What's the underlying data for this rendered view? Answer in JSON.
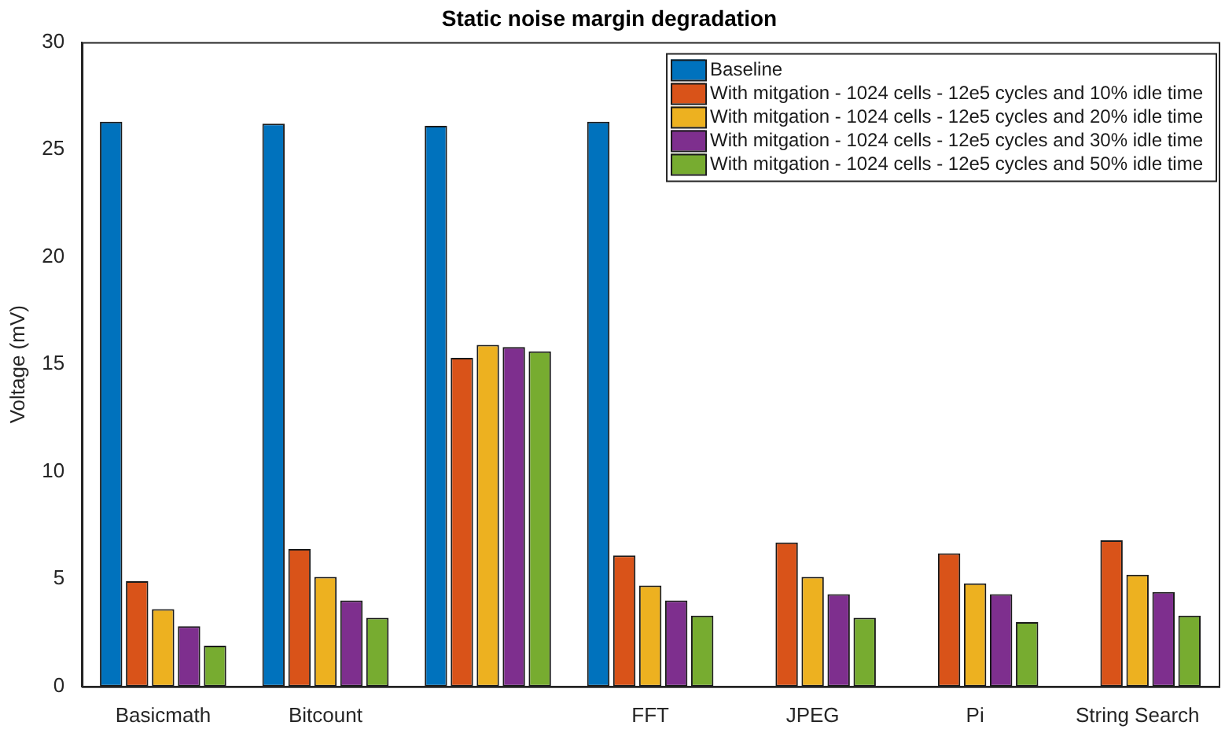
{
  "chart_data": {
    "type": "bar",
    "title": "Static noise margin degradation",
    "ylabel": "Voltage (mV)",
    "categories": [
      "Basicmath",
      "Bitcount",
      null,
      "FFT",
      "JPEG",
      "Pi",
      "String Search"
    ],
    "series": [
      {
        "name": "Baseline",
        "color": "#0072bd",
        "values": [
          26.3,
          26.2,
          26.1,
          26.3,
          null,
          null,
          null
        ]
      },
      {
        "name": "With mitgation - 1024 cells - 12e5 cycles and 10% idle time",
        "color": "#d95319",
        "values": [
          4.9,
          6.4,
          15.3,
          6.1,
          6.7,
          6.2,
          6.8
        ]
      },
      {
        "name": "With mitgation - 1024 cells - 12e5 cycles and 20% idle time",
        "color": "#edb120",
        "values": [
          3.6,
          5.1,
          15.9,
          4.7,
          5.1,
          4.8,
          5.2
        ]
      },
      {
        "name": "With mitgation - 1024 cells - 12e5 cycles and 30% idle time",
        "color": "#7e2f8e",
        "values": [
          2.8,
          4.0,
          15.8,
          4.0,
          4.3,
          4.3,
          4.4
        ]
      },
      {
        "name": "With mitgation - 1024 cells - 12e5 cycles and 50% idle time",
        "color": "#77ac30",
        "values": [
          1.9,
          3.2,
          15.6,
          3.3,
          3.2,
          3.0,
          3.3
        ]
      }
    ],
    "ylim": [
      0,
      30
    ],
    "yticks": [
      0,
      5,
      10,
      15,
      20,
      25,
      30
    ],
    "legend": "top right"
  }
}
